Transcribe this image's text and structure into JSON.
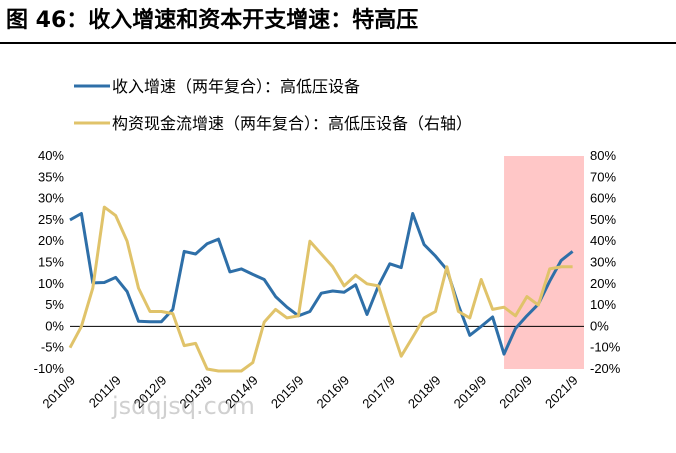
{
  "header": {
    "title": "图 46：收入增速和资本开支增速：特高压"
  },
  "watermark": "jsdqjsq.com",
  "colors": {
    "series1": "#2e6fa8",
    "series2": "#e0c36a",
    "highlight": "#ffc7c7"
  },
  "chart_data": {
    "type": "line",
    "legend_position": "top",
    "grid": false,
    "x_tick_labels": [
      "2010/9",
      "2011/9",
      "2012/9",
      "2013/9",
      "2014/9",
      "2015/9",
      "2016/9",
      "2017/9",
      "2018/9",
      "2019/9",
      "2020/9",
      "2021/9"
    ],
    "x_range": [
      0,
      45
    ],
    "y_left": {
      "range": [
        -10,
        40
      ],
      "ticks": [
        "-10%",
        "-5%",
        "0%",
        "5%",
        "10%",
        "15%",
        "20%",
        "25%",
        "30%",
        "35%",
        "40%"
      ]
    },
    "y_right": {
      "range": [
        -20,
        80
      ],
      "ticks": [
        "-20%",
        "-10%",
        "0%",
        "10%",
        "20%",
        "30%",
        "40%",
        "50%",
        "60%",
        "70%",
        "80%"
      ]
    },
    "highlight_x_range": [
      38,
      45
    ],
    "series": [
      {
        "name": "收入增速（两年复合）：高低压设备",
        "axis": "left",
        "color": "#2e6fa8",
        "x": [
          0,
          1,
          2,
          3,
          4,
          5,
          6,
          7,
          8,
          9,
          10,
          11,
          12,
          13,
          14,
          15,
          16,
          17,
          18,
          19,
          20,
          21,
          22,
          23,
          24,
          25,
          26,
          27,
          28,
          29,
          30,
          31,
          32,
          33,
          34,
          35,
          36,
          37,
          38,
          39,
          40,
          41,
          42,
          43,
          44
        ],
        "values": [
          25,
          26.5,
          10.2,
          10.3,
          11.5,
          8.2,
          1.2,
          1.1,
          1.1,
          4,
          17.6,
          17,
          19.4,
          20.5,
          12.8,
          13.5,
          12.2,
          11,
          7,
          4.5,
          2.5,
          3.5,
          7.8,
          8.3,
          8,
          9.8,
          2.8,
          9.5,
          14.7,
          13.8,
          26.5,
          19.2,
          16.5,
          13.3,
          5,
          -2.1,
          0,
          2.2,
          -6.5,
          -0.5,
          2.5,
          5.2,
          10.6,
          15.5,
          17.6
        ]
      },
      {
        "name": "构资现金流增速（两年复合）：高低压设备（右轴）",
        "axis": "right",
        "color": "#e0c36a",
        "x": [
          0,
          1,
          2,
          3,
          4,
          5,
          6,
          7,
          8,
          9,
          10,
          11,
          12,
          13,
          14,
          15,
          16,
          17,
          18,
          19,
          20,
          21,
          22,
          23,
          24,
          25,
          26,
          27,
          28,
          29,
          30,
          31,
          32,
          33,
          34,
          35,
          36,
          37,
          38,
          39,
          40,
          41,
          42,
          43,
          44
        ],
        "values": [
          -10,
          0,
          18,
          56,
          52,
          40,
          18,
          7,
          7,
          6,
          -9,
          -8,
          -20,
          -21,
          -22,
          -22,
          -17,
          2,
          8,
          4,
          5,
          40,
          34,
          28,
          19,
          24,
          20,
          19,
          2,
          -14,
          -5,
          4,
          7,
          28,
          7,
          4,
          22,
          8,
          9,
          5,
          14,
          10,
          27,
          28,
          28
        ]
      }
    ]
  }
}
